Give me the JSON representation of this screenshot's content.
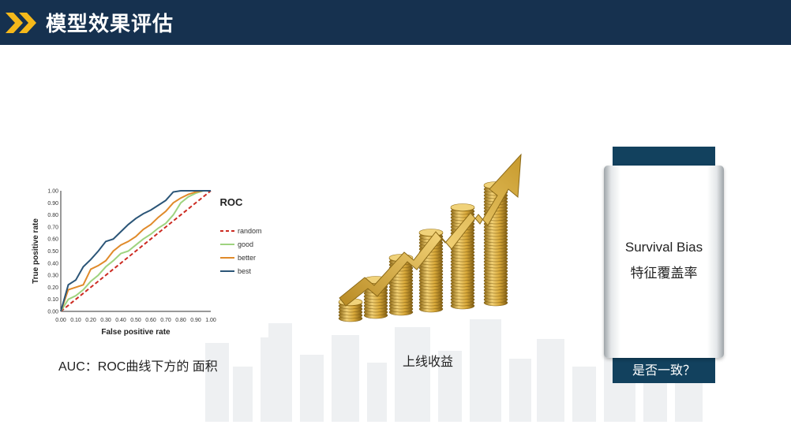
{
  "header": {
    "title": "模型效果评估",
    "bg_color": "#16314f",
    "accent_color": "#f5b81a",
    "icon": "double-chevron-icon"
  },
  "roc": {
    "caption": "AUC：ROC曲线下方的 面积",
    "chart_data": {
      "type": "line",
      "title": "ROC",
      "xlabel": "False positive rate",
      "ylabel": "True  positive rate",
      "xlim": [
        0,
        1
      ],
      "ylim": [
        0,
        1
      ],
      "x_ticks": [
        "0.00",
        "0.10",
        "0.20",
        "0.30",
        "0.40",
        "0.50",
        "0.60",
        "0.70",
        "0.80",
        "0.90",
        "1.00"
      ],
      "y_ticks": [
        "0.00",
        "0.10",
        "0.20",
        "0.30",
        "0.40",
        "0.50",
        "0.60",
        "0.70",
        "0.80",
        "0.90",
        "1.00"
      ],
      "legend_position": "right",
      "grid": false,
      "series": [
        {
          "name": "random",
          "color": "#cc2b22",
          "dashed": true,
          "x": [
            0,
            1
          ],
          "y": [
            0,
            1
          ]
        },
        {
          "name": "good",
          "color": "#9ed37f",
          "x": [
            0,
            0.05,
            0.1,
            0.15,
            0.2,
            0.25,
            0.3,
            0.35,
            0.4,
            0.45,
            0.5,
            0.55,
            0.6,
            0.65,
            0.7,
            0.75,
            0.8,
            0.85,
            0.9,
            0.95,
            1.0
          ],
          "y": [
            0,
            0.1,
            0.13,
            0.18,
            0.25,
            0.3,
            0.37,
            0.42,
            0.48,
            0.5,
            0.55,
            0.6,
            0.64,
            0.69,
            0.73,
            0.8,
            0.9,
            0.95,
            0.98,
            1.0,
            1.0
          ]
        },
        {
          "name": "better",
          "color": "#e08a2a",
          "x": [
            0,
            0.05,
            0.1,
            0.15,
            0.2,
            0.25,
            0.3,
            0.35,
            0.4,
            0.45,
            0.5,
            0.55,
            0.6,
            0.65,
            0.7,
            0.75,
            0.8,
            0.85,
            0.9,
            0.95,
            1.0
          ],
          "y": [
            0,
            0.18,
            0.2,
            0.22,
            0.35,
            0.38,
            0.42,
            0.5,
            0.55,
            0.58,
            0.62,
            0.68,
            0.72,
            0.78,
            0.83,
            0.9,
            0.94,
            0.97,
            0.99,
            1.0,
            1.0
          ]
        },
        {
          "name": "best",
          "color": "#2b5577",
          "x": [
            0,
            0.05,
            0.1,
            0.15,
            0.2,
            0.25,
            0.3,
            0.35,
            0.4,
            0.45,
            0.5,
            0.55,
            0.6,
            0.65,
            0.7,
            0.75,
            0.8,
            0.85,
            0.9,
            0.95,
            1.0
          ],
          "y": [
            0,
            0.22,
            0.26,
            0.37,
            0.43,
            0.5,
            0.58,
            0.6,
            0.66,
            0.72,
            0.77,
            0.81,
            0.84,
            0.88,
            0.92,
            0.99,
            1.0,
            1.0,
            1.0,
            1.0,
            1.0
          ]
        }
      ]
    }
  },
  "coins": {
    "caption": "上线收益",
    "icon": "rising-coins-arrow-icon",
    "color": "#d4a630"
  },
  "banner": {
    "line1": "Survival Bias",
    "line2": "特征覆盖率",
    "question": "是否一致？",
    "accent_color": "#12415e"
  }
}
